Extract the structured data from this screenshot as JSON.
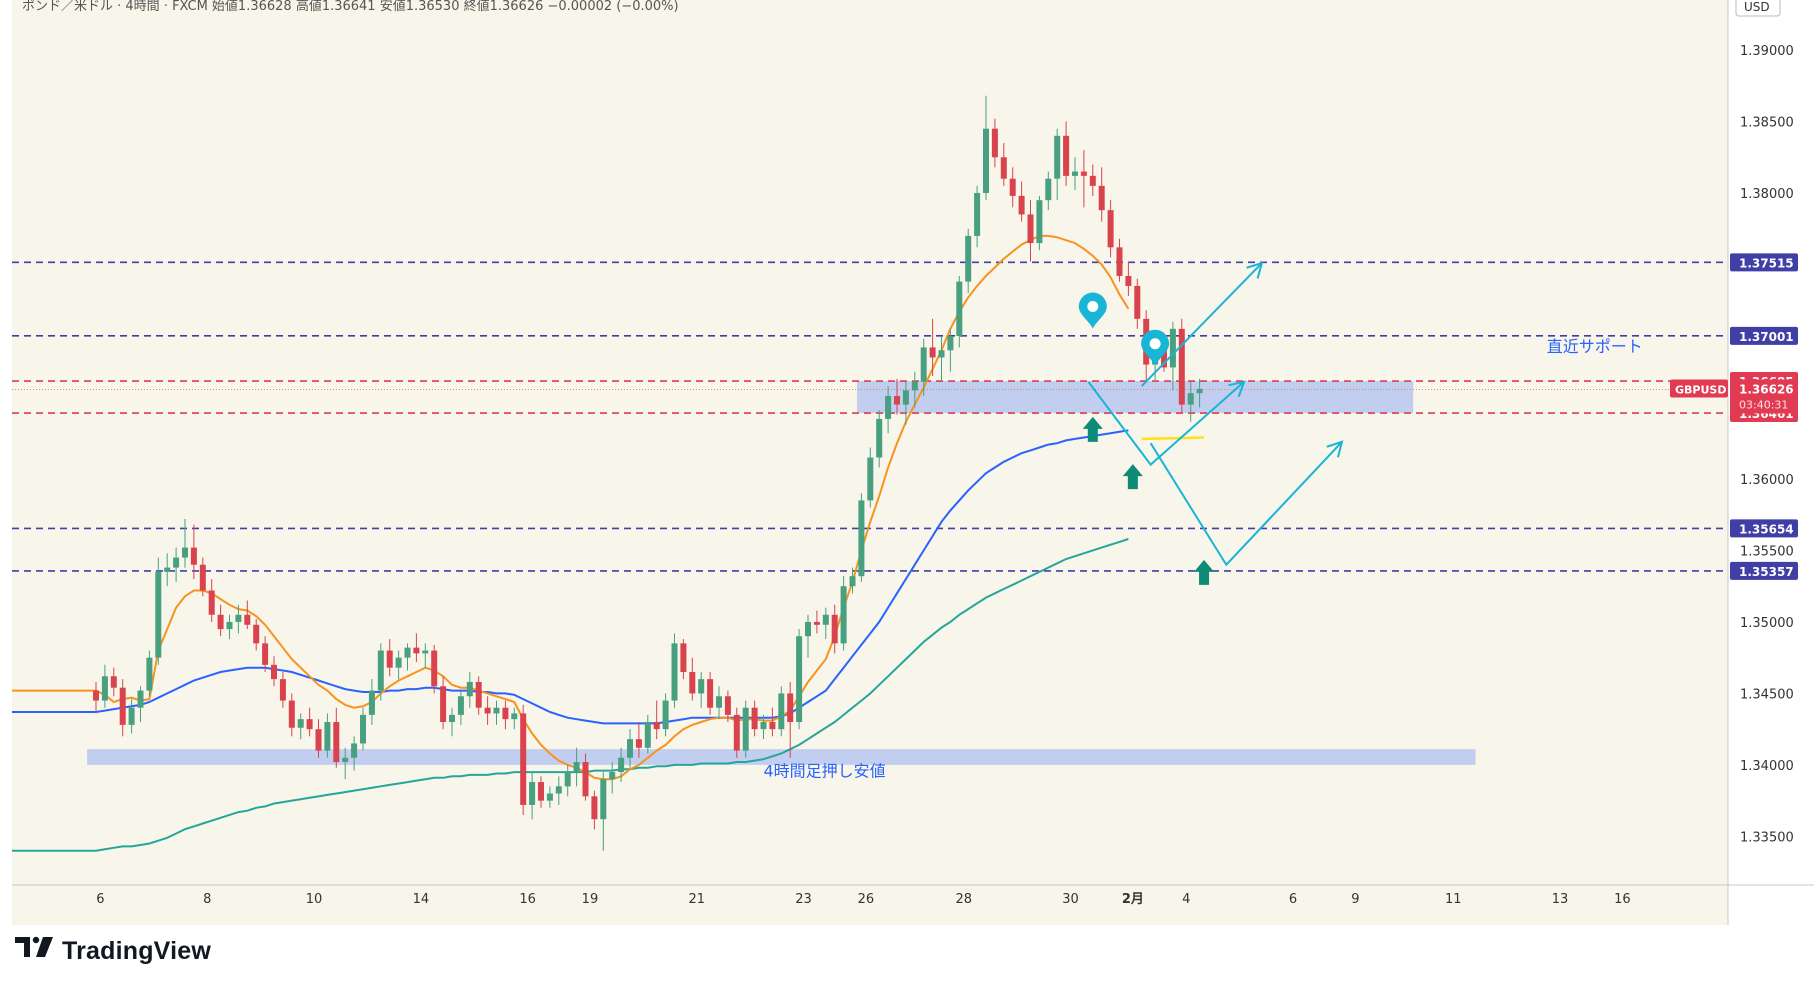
{
  "header": {
    "text": "ポンド／米ドル · 4時間 · FXCM  始値1.36628  高値1.36641  安値1.36530  終値1.36626  −0.00002 (−0.00%)"
  },
  "axis": {
    "currency": "USD"
  },
  "chart_data": {
    "type": "candlestick",
    "symbol_label": "GBPUSD",
    "ylim": [
      1.3316,
      1.3935
    ],
    "y_ticks": [
      1.39,
      1.385,
      1.38,
      1.36,
      1.355,
      1.35,
      1.345,
      1.34,
      1.335
    ],
    "y_tick_labels": [
      "1.39000",
      "1.38500",
      "1.38000",
      "1.36000",
      "1.35500",
      "1.35000",
      "1.34500",
      "1.34000",
      "1.33500"
    ],
    "x_tick_labels": [
      {
        "label": "6",
        "i": 0.5
      },
      {
        "label": "8",
        "i": 12.5
      },
      {
        "label": "10",
        "i": 24.5
      },
      {
        "label": "14",
        "i": 36.5
      },
      {
        "label": "16",
        "i": 48.5
      },
      {
        "label": "19",
        "i": 55.5
      },
      {
        "label": "21",
        "i": 67.5
      },
      {
        "label": "23",
        "i": 79.5
      },
      {
        "label": "26",
        "i": 86.5
      },
      {
        "label": "28",
        "i": 97.5
      },
      {
        "label": "30",
        "i": 109.5
      },
      {
        "label": "2月",
        "i": 116.5
      },
      {
        "label": "4",
        "i": 122.5
      },
      {
        "label": "6",
        "i": 134.5
      },
      {
        "label": "9",
        "i": 141.5
      },
      {
        "label": "11",
        "i": 152.5
      },
      {
        "label": "13",
        "i": 164.5
      },
      {
        "label": "16",
        "i": 171.5
      }
    ],
    "candles": [
      [
        1.3452,
        1.3458,
        1.3436,
        1.3445
      ],
      [
        1.3445,
        1.347,
        1.344,
        1.3462
      ],
      [
        1.3462,
        1.3468,
        1.3448,
        1.3454
      ],
      [
        1.3454,
        1.346,
        1.342,
        1.3428
      ],
      [
        1.3428,
        1.3446,
        1.3422,
        1.344
      ],
      [
        1.344,
        1.3455,
        1.343,
        1.3452
      ],
      [
        1.3452,
        1.348,
        1.3448,
        1.3475
      ],
      [
        1.3475,
        1.3545,
        1.347,
        1.3535
      ],
      [
        1.3535,
        1.3548,
        1.3525,
        1.3538
      ],
      [
        1.3538,
        1.3552,
        1.3528,
        1.3545
      ],
      [
        1.3545,
        1.3572,
        1.3538,
        1.3552
      ],
      [
        1.3552,
        1.3568,
        1.353,
        1.354
      ],
      [
        1.354,
        1.3545,
        1.3518,
        1.3522
      ],
      [
        1.3522,
        1.353,
        1.35,
        1.3505
      ],
      [
        1.3505,
        1.3512,
        1.349,
        1.3495
      ],
      [
        1.3495,
        1.3505,
        1.3488,
        1.35
      ],
      [
        1.35,
        1.3512,
        1.3492,
        1.3505
      ],
      [
        1.3505,
        1.3515,
        1.3495,
        1.3498
      ],
      [
        1.3498,
        1.3502,
        1.348,
        1.3485
      ],
      [
        1.3485,
        1.349,
        1.3465,
        1.347
      ],
      [
        1.347,
        1.3476,
        1.3455,
        1.346
      ],
      [
        1.346,
        1.3465,
        1.344,
        1.3445
      ],
      [
        1.3445,
        1.345,
        1.342,
        1.3426
      ],
      [
        1.3426,
        1.3436,
        1.3418,
        1.3432
      ],
      [
        1.3432,
        1.344,
        1.342,
        1.3425
      ],
      [
        1.3425,
        1.3432,
        1.3405,
        1.341
      ],
      [
        1.341,
        1.3436,
        1.3405,
        1.343
      ],
      [
        1.343,
        1.344,
        1.3398,
        1.3402
      ],
      [
        1.3402,
        1.3412,
        1.339,
        1.3405
      ],
      [
        1.3405,
        1.342,
        1.3396,
        1.3415
      ],
      [
        1.3415,
        1.344,
        1.341,
        1.3435
      ],
      [
        1.3435,
        1.346,
        1.3428,
        1.3452
      ],
      [
        1.3452,
        1.3485,
        1.3445,
        1.348
      ],
      [
        1.348,
        1.3488,
        1.3462,
        1.3468
      ],
      [
        1.3468,
        1.348,
        1.346,
        1.3475
      ],
      [
        1.3475,
        1.3485,
        1.3466,
        1.3482
      ],
      [
        1.3482,
        1.3492,
        1.3472,
        1.3478
      ],
      [
        1.3478,
        1.3485,
        1.3468,
        1.348
      ],
      [
        1.348,
        1.3484,
        1.345,
        1.3455
      ],
      [
        1.3455,
        1.3462,
        1.3425,
        1.343
      ],
      [
        1.343,
        1.344,
        1.342,
        1.3435
      ],
      [
        1.3435,
        1.3452,
        1.3428,
        1.3448
      ],
      [
        1.3448,
        1.3465,
        1.344,
        1.3458
      ],
      [
        1.3458,
        1.3462,
        1.3435,
        1.344
      ],
      [
        1.344,
        1.3448,
        1.3428,
        1.3436
      ],
      [
        1.3436,
        1.3445,
        1.3428,
        1.344
      ],
      [
        1.344,
        1.3445,
        1.3425,
        1.3432
      ],
      [
        1.3432,
        1.344,
        1.3425,
        1.3436
      ],
      [
        1.3436,
        1.3442,
        1.3365,
        1.3372
      ],
      [
        1.3372,
        1.3395,
        1.3362,
        1.3388
      ],
      [
        1.3388,
        1.3392,
        1.337,
        1.3375
      ],
      [
        1.3375,
        1.3385,
        1.337,
        1.338
      ],
      [
        1.338,
        1.3392,
        1.3372,
        1.3385
      ],
      [
        1.3385,
        1.34,
        1.3378,
        1.3395
      ],
      [
        1.3395,
        1.3412,
        1.3385,
        1.3402
      ],
      [
        1.3402,
        1.3408,
        1.3375,
        1.3378
      ],
      [
        1.3378,
        1.3382,
        1.3355,
        1.3362
      ],
      [
        1.3362,
        1.3395,
        1.334,
        1.339
      ],
      [
        1.339,
        1.3402,
        1.338,
        1.3395
      ],
      [
        1.3395,
        1.3412,
        1.3388,
        1.3405
      ],
      [
        1.3405,
        1.3425,
        1.3398,
        1.3418
      ],
      [
        1.3418,
        1.343,
        1.3405,
        1.3412
      ],
      [
        1.3412,
        1.3435,
        1.3408,
        1.343
      ],
      [
        1.343,
        1.3445,
        1.3418,
        1.3425
      ],
      [
        1.3425,
        1.345,
        1.342,
        1.3445
      ],
      [
        1.3445,
        1.3492,
        1.344,
        1.3485
      ],
      [
        1.3485,
        1.3488,
        1.346,
        1.3465
      ],
      [
        1.3465,
        1.3475,
        1.3445,
        1.345
      ],
      [
        1.345,
        1.3465,
        1.344,
        1.346
      ],
      [
        1.346,
        1.3465,
        1.3435,
        1.344
      ],
      [
        1.344,
        1.3455,
        1.3432,
        1.3448
      ],
      [
        1.3448,
        1.3452,
        1.343,
        1.3435
      ],
      [
        1.3435,
        1.344,
        1.3405,
        1.341
      ],
      [
        1.341,
        1.3445,
        1.3405,
        1.344
      ],
      [
        1.344,
        1.3445,
        1.342,
        1.3425
      ],
      [
        1.3425,
        1.3435,
        1.3418,
        1.343
      ],
      [
        1.343,
        1.344,
        1.342,
        1.3425
      ],
      [
        1.3425,
        1.3455,
        1.342,
        1.345
      ],
      [
        1.345,
        1.3458,
        1.3405,
        1.343
      ],
      [
        1.343,
        1.3495,
        1.3425,
        1.349
      ],
      [
        1.349,
        1.3505,
        1.3475,
        1.35
      ],
      [
        1.35,
        1.3508,
        1.3492,
        1.3498
      ],
      [
        1.3498,
        1.351,
        1.3488,
        1.3505
      ],
      [
        1.3505,
        1.3512,
        1.3478,
        1.3485
      ],
      [
        1.3485,
        1.3532,
        1.348,
        1.3525
      ],
      [
        1.3525,
        1.3538,
        1.352,
        1.3532
      ],
      [
        1.3532,
        1.359,
        1.3528,
        1.3585
      ],
      [
        1.3585,
        1.3622,
        1.358,
        1.3615
      ],
      [
        1.3615,
        1.3648,
        1.3608,
        1.3642
      ],
      [
        1.3642,
        1.3665,
        1.3632,
        1.3658
      ],
      [
        1.3658,
        1.367,
        1.3645,
        1.3652
      ],
      [
        1.3652,
        1.3668,
        1.3638,
        1.3662
      ],
      [
        1.3662,
        1.3675,
        1.365,
        1.3668
      ],
      [
        1.3668,
        1.3698,
        1.3658,
        1.3692
      ],
      [
        1.3692,
        1.3712,
        1.3672,
        1.3685
      ],
      [
        1.3685,
        1.37,
        1.3668,
        1.369
      ],
      [
        1.369,
        1.3705,
        1.3675,
        1.37
      ],
      [
        1.37,
        1.3742,
        1.3692,
        1.3738
      ],
      [
        1.3738,
        1.3775,
        1.373,
        1.377
      ],
      [
        1.377,
        1.3805,
        1.3762,
        1.38
      ],
      [
        1.38,
        1.3868,
        1.3795,
        1.3845
      ],
      [
        1.3845,
        1.3852,
        1.3818,
        1.3825
      ],
      [
        1.3825,
        1.3835,
        1.3805,
        1.381
      ],
      [
        1.381,
        1.3818,
        1.379,
        1.3798
      ],
      [
        1.3798,
        1.3808,
        1.378,
        1.3785
      ],
      [
        1.3785,
        1.3795,
        1.3752,
        1.3765
      ],
      [
        1.3765,
        1.3798,
        1.376,
        1.3795
      ],
      [
        1.3795,
        1.3815,
        1.3788,
        1.381
      ],
      [
        1.381,
        1.3845,
        1.3795,
        1.384
      ],
      [
        1.384,
        1.385,
        1.3805,
        1.3812
      ],
      [
        1.3812,
        1.3825,
        1.3802,
        1.3815
      ],
      [
        1.3815,
        1.383,
        1.379,
        1.3812
      ],
      [
        1.3812,
        1.382,
        1.3798,
        1.3805
      ],
      [
        1.3805,
        1.3818,
        1.378,
        1.3788
      ],
      [
        1.3788,
        1.3795,
        1.3755,
        1.3762
      ],
      [
        1.3762,
        1.3768,
        1.3738,
        1.3742
      ],
      [
        1.3742,
        1.3752,
        1.3728,
        1.3735
      ],
      [
        1.3735,
        1.374,
        1.3705,
        1.3712
      ],
      [
        1.3712,
        1.3718,
        1.3668,
        1.368
      ],
      [
        1.368,
        1.3698,
        1.3668,
        1.369
      ],
      [
        1.369,
        1.3702,
        1.3675,
        1.3678
      ],
      [
        1.3678,
        1.371,
        1.3662,
        1.3705
      ],
      [
        1.3705,
        1.3712,
        1.3646,
        1.3652
      ],
      [
        1.3652,
        1.3668,
        1.364,
        1.366
      ],
      [
        1.366,
        1.367,
        1.365,
        1.3663
      ]
    ],
    "ema_fast": {
      "color": "#f7931e",
      "values": [
        1.3452,
        1.3449,
        1.3444,
        1.3446,
        1.3447,
        1.3445,
        1.3446,
        1.348,
        1.3495,
        1.351,
        1.3518,
        1.3522,
        1.3522,
        1.352,
        1.3516,
        1.3512,
        1.3509,
        1.3508,
        1.3504,
        1.3498,
        1.349,
        1.3482,
        1.3474,
        1.3468,
        1.3462,
        1.3456,
        1.3452,
        1.3446,
        1.3442,
        1.344,
        1.3441,
        1.3444,
        1.345,
        1.3455,
        1.3459,
        1.3462,
        1.3465,
        1.3468,
        1.3466,
        1.3462,
        1.3456,
        1.3454,
        1.3454,
        1.3452,
        1.345,
        1.3448,
        1.3446,
        1.3444,
        1.3432,
        1.3422,
        1.3414,
        1.3408,
        1.3403,
        1.34,
        1.3398,
        1.3395,
        1.3391,
        1.339,
        1.339,
        1.3392,
        1.3397,
        1.34,
        1.3405,
        1.341,
        1.3414,
        1.342,
        1.3425,
        1.3428,
        1.343,
        1.3432,
        1.3433,
        1.3433,
        1.3431,
        1.3432,
        1.3432,
        1.3431,
        1.3431,
        1.3434,
        1.3438,
        1.3448,
        1.3458,
        1.3466,
        1.3474,
        1.349,
        1.351,
        1.3528,
        1.355,
        1.357,
        1.3588,
        1.3608,
        1.3625,
        1.364,
        1.3652,
        1.3664,
        1.3677,
        1.369,
        1.3705,
        1.3717,
        1.3727,
        1.3735,
        1.3742,
        1.3748,
        1.3754,
        1.3759,
        1.3764,
        1.3767,
        1.377,
        1.377,
        1.3769,
        1.3767,
        1.3765,
        1.3761,
        1.3756,
        1.375,
        1.3741,
        1.3729,
        1.3719
      ]
    },
    "ema_mid": {
      "color": "#2962ff",
      "values": [
        1.3437,
        1.3438,
        1.3439,
        1.344,
        1.3441,
        1.3442,
        1.3444,
        1.3447,
        1.345,
        1.3453,
        1.3456,
        1.3459,
        1.3461,
        1.3463,
        1.3465,
        1.3466,
        1.3467,
        1.3468,
        1.3468,
        1.3468,
        1.3467,
        1.3466,
        1.3465,
        1.3463,
        1.3461,
        1.3459,
        1.3457,
        1.3455,
        1.3453,
        1.3452,
        1.3451,
        1.3451,
        1.3451,
        1.3452,
        1.3452,
        1.3453,
        1.3453,
        1.3454,
        1.3454,
        1.3453,
        1.3452,
        1.3452,
        1.3452,
        1.3451,
        1.3451,
        1.345,
        1.345,
        1.3449,
        1.3446,
        1.3443,
        1.344,
        1.3437,
        1.3435,
        1.3433,
        1.3432,
        1.3431,
        1.343,
        1.3429,
        1.3429,
        1.3429,
        1.3429,
        1.3429,
        1.3429,
        1.3429,
        1.343,
        1.3431,
        1.3432,
        1.3433,
        1.3433,
        1.3433,
        1.3433,
        1.3433,
        1.3433,
        1.3433,
        1.3433,
        1.3433,
        1.3433,
        1.3434,
        1.3436,
        1.344,
        1.3444,
        1.3448,
        1.3452,
        1.346,
        1.3468,
        1.3476,
        1.3484,
        1.3492,
        1.35,
        1.351,
        1.352,
        1.353,
        1.354,
        1.355,
        1.356,
        1.357,
        1.3578,
        1.3585,
        1.3592,
        1.3598,
        1.3604,
        1.3608,
        1.3612,
        1.3615,
        1.3618,
        1.362,
        1.3622,
        1.3624,
        1.3625,
        1.3627,
        1.3628,
        1.3629,
        1.363,
        1.3631,
        1.3632,
        1.3633,
        1.3634
      ]
    },
    "ema_slow": {
      "color": "#26a69a",
      "values": [
        1.334,
        1.3341,
        1.3342,
        1.3343,
        1.3343,
        1.3344,
        1.3345,
        1.3347,
        1.3349,
        1.3352,
        1.3355,
        1.3357,
        1.3359,
        1.3361,
        1.3363,
        1.3365,
        1.3367,
        1.3368,
        1.337,
        1.3371,
        1.3373,
        1.3374,
        1.3375,
        1.3376,
        1.3377,
        1.3378,
        1.3379,
        1.338,
        1.3381,
        1.3382,
        1.3383,
        1.3384,
        1.3385,
        1.3386,
        1.3387,
        1.3388,
        1.3389,
        1.339,
        1.3391,
        1.3391,
        1.3392,
        1.3392,
        1.3393,
        1.3393,
        1.3393,
        1.3394,
        1.3394,
        1.3395,
        1.3395,
        1.3395,
        1.3395,
        1.3395,
        1.3395,
        1.3395,
        1.3395,
        1.3395,
        1.3396,
        1.3396,
        1.3396,
        1.3397,
        1.3397,
        1.3398,
        1.3398,
        1.3399,
        1.3399,
        1.34,
        1.34,
        1.34,
        1.3401,
        1.3401,
        1.3401,
        1.3401,
        1.3402,
        1.3402,
        1.3403,
        1.3404,
        1.3406,
        1.3408,
        1.3411,
        1.3414,
        1.3418,
        1.3422,
        1.3426,
        1.343,
        1.3435,
        1.344,
        1.3445,
        1.345,
        1.3456,
        1.3462,
        1.3468,
        1.3474,
        1.348,
        1.3486,
        1.3491,
        1.3496,
        1.35,
        1.3505,
        1.3509,
        1.3513,
        1.3517,
        1.352,
        1.3523,
        1.3526,
        1.3529,
        1.3532,
        1.3535,
        1.3538,
        1.3541,
        1.3544,
        1.3546,
        1.3548,
        1.355,
        1.3552,
        1.3554,
        1.3556,
        1.3558
      ]
    },
    "levels": [
      {
        "value": 1.37515,
        "label": "1.37515",
        "color": "#3f3fa5",
        "style": "dashed"
      },
      {
        "value": 1.37001,
        "label": "1.37001",
        "color": "#3f3fa5",
        "style": "dashed"
      },
      {
        "value": 1.36685,
        "label": "1.36685",
        "color": "#e03b52",
        "style": "dashed"
      },
      {
        "value": 1.36461,
        "label": "1.36461",
        "color": "#e03b52",
        "style": "dashed"
      },
      {
        "value": 1.35654,
        "label": "1.35654",
        "color": "#3f3fa5",
        "style": "dashed"
      },
      {
        "value": 1.35357,
        "label": "1.35357",
        "color": "#3f3fa5",
        "style": "dashed"
      }
    ],
    "current_price": {
      "value": 1.36626,
      "label": "1.36626",
      "countdown": "03:40:31"
    },
    "zones": [
      {
        "from_i": 85.5,
        "to_i": 148,
        "low": 1.36461,
        "high": 1.36685,
        "color": "#b3c4f0"
      },
      {
        "from_i": -1,
        "to_i": 155,
        "low": 1.34,
        "high": 1.3411,
        "color": "#b3c4f0"
      }
    ],
    "annotations": [
      {
        "text": "直近サポート",
        "i": 163,
        "value": 1.3693,
        "color": "#2962ff"
      },
      {
        "text": "4時間足押し安値",
        "i": 75,
        "value": 1.3396,
        "color": "#2962ff"
      }
    ],
    "projections": [
      [
        [
          117.5,
          1.3665
        ],
        [
          131,
          1.3751
        ]
      ],
      [
        [
          111.5,
          1.3668
        ],
        [
          118.5,
          1.361
        ],
        [
          129,
          1.3668
        ]
      ],
      [
        [
          118.5,
          1.3625
        ],
        [
          127,
          1.354
        ],
        [
          140,
          1.3626
        ]
      ]
    ],
    "projection_color": "#19b5d6",
    "pins": [
      {
        "i": 112,
        "value": 1.3715
      },
      {
        "i": 119,
        "value": 1.3689
      }
    ],
    "arrows": [
      {
        "i": 112,
        "value": 1.3635
      },
      {
        "i": 116.5,
        "value": 1.3602
      },
      {
        "i": 124.5,
        "value": 1.3535
      }
    ],
    "arrow_color": "#0e8a77",
    "yellow_line": [
      [
        117.5,
        1.3628
      ],
      [
        124.5,
        1.3629
      ]
    ],
    "colors": {
      "up": "#48a080",
      "down": "#d9434d",
      "background": "#f8f5ea"
    }
  },
  "watermark": {
    "text": "TradingView"
  }
}
